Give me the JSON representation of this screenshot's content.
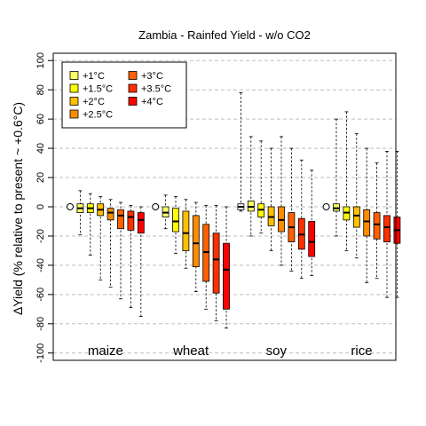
{
  "chart_data": {
    "type": "box",
    "title": "Zambia - Rainfed Yield - w/o CO2",
    "xlabel": "",
    "ylabel": "ΔYield (% relative to present ~ +0.6°C)",
    "ylim": [
      -105,
      105
    ],
    "yticks": [
      -100,
      -80,
      -60,
      -40,
      -20,
      0,
      20,
      40,
      60,
      80,
      100
    ],
    "grid": "horizontal-dashed",
    "legend_position": "top-left",
    "warming_levels": [
      {
        "label": "+1°C",
        "color": "#FFFF66"
      },
      {
        "label": "+1.5°C",
        "color": "#FFFF00"
      },
      {
        "label": "+2°C",
        "color": "#FFC000"
      },
      {
        "label": "+2.5°C",
        "color": "#FF8C00"
      },
      {
        "label": "+3°C",
        "color": "#FF6000"
      },
      {
        "label": "+3.5°C",
        "color": "#FF3000"
      },
      {
        "label": "+4°C",
        "color": "#FF0000"
      }
    ],
    "crops": [
      {
        "name": "maize",
        "boxes": [
          {
            "level": "+0.6°C",
            "min": 0,
            "q1": 0,
            "median": 0,
            "q3": 0,
            "max": 0,
            "baseline": true
          },
          {
            "level": "+1°C",
            "min": -19,
            "q1": -4,
            "median": -1,
            "q3": 2,
            "max": 11
          },
          {
            "level": "+1.5°C",
            "min": -33,
            "q1": -4,
            "median": -1,
            "q3": 2,
            "max": 9
          },
          {
            "level": "+2°C",
            "min": -50,
            "q1": -6,
            "median": -2,
            "q3": 2,
            "max": 7
          },
          {
            "level": "+2.5°C",
            "min": -55,
            "q1": -9,
            "median": -4,
            "q3": -1,
            "max": 5
          },
          {
            "level": "+3°C",
            "min": -63,
            "q1": -15,
            "median": -6,
            "q3": -2,
            "max": 3
          },
          {
            "level": "+3.5°C",
            "min": -69,
            "q1": -16,
            "median": -7,
            "q3": -3,
            "max": 1
          },
          {
            "level": "+4°C",
            "min": -75,
            "q1": -18,
            "median": -9,
            "q3": -4,
            "max": 0
          }
        ]
      },
      {
        "name": "wheat",
        "boxes": [
          {
            "level": "+0.6°C",
            "min": 0,
            "q1": 0,
            "median": 0,
            "q3": 0,
            "max": 0,
            "baseline": true
          },
          {
            "level": "+1°C",
            "min": -15,
            "q1": -7,
            "median": -4,
            "q3": 0,
            "max": 8
          },
          {
            "level": "+1.5°C",
            "min": -32,
            "q1": -17,
            "median": -10,
            "q3": -1,
            "max": 7
          },
          {
            "level": "+2°C",
            "min": -42,
            "q1": -30,
            "median": -18,
            "q3": -3,
            "max": 5
          },
          {
            "level": "+2.5°C",
            "min": -58,
            "q1": -41,
            "median": -25,
            "q3": -6,
            "max": 3
          },
          {
            "level": "+3°C",
            "min": -70,
            "q1": -51,
            "median": -31,
            "q3": -12,
            "max": 1
          },
          {
            "level": "+3.5°C",
            "min": -78,
            "q1": -59,
            "median": -36,
            "q3": -18,
            "max": 1
          },
          {
            "level": "+4°C",
            "min": -83,
            "q1": -70,
            "median": -43,
            "q3": -25,
            "max": 0
          }
        ]
      },
      {
        "name": "soy",
        "boxes": [
          {
            "level": "+0.6°C",
            "min": -3,
            "q1": -2,
            "median": 0,
            "q3": 2,
            "max": 78,
            "baseline": true
          },
          {
            "level": "+1°C",
            "min": -20,
            "q1": -3,
            "median": 0,
            "q3": 4,
            "max": 48
          },
          {
            "level": "+1.5°C",
            "min": -18,
            "q1": -7,
            "median": -2,
            "q3": 2,
            "max": 45
          },
          {
            "level": "+2°C",
            "min": -30,
            "q1": -13,
            "median": -7,
            "q3": 0,
            "max": 40
          },
          {
            "level": "+2.5°C",
            "min": -40,
            "q1": -17,
            "median": -9,
            "q3": 0,
            "max": 48
          },
          {
            "level": "+3°C",
            "min": -44,
            "q1": -24,
            "median": -14,
            "q3": -4,
            "max": 40
          },
          {
            "level": "+3.5°C",
            "min": -49,
            "q1": -29,
            "median": -19,
            "q3": -8,
            "max": 32
          },
          {
            "level": "+4°C",
            "min": -47,
            "q1": -34,
            "median": -24,
            "q3": -10,
            "max": 25
          }
        ]
      },
      {
        "name": "rice",
        "boxes": [
          {
            "level": "+0.6°C",
            "min": 0,
            "q1": 0,
            "median": 0,
            "q3": 0,
            "max": 0,
            "baseline": true
          },
          {
            "level": "+1°C",
            "min": -20,
            "q1": -3,
            "median": -1,
            "q3": 2,
            "max": 60
          },
          {
            "level": "+1.5°C",
            "min": -30,
            "q1": -9,
            "median": -4,
            "q3": 0,
            "max": 65
          },
          {
            "level": "+2°C",
            "min": -35,
            "q1": -14,
            "median": -6,
            "q3": 0,
            "max": 50
          },
          {
            "level": "+2.5°C",
            "min": -52,
            "q1": -20,
            "median": -10,
            "q3": -2,
            "max": 40
          },
          {
            "level": "+3°C",
            "min": -49,
            "q1": -22,
            "median": -12,
            "q3": -4,
            "max": 30
          },
          {
            "level": "+3.5°C",
            "min": -62,
            "q1": -24,
            "median": -14,
            "q3": -6,
            "max": 38
          },
          {
            "level": "+4°C",
            "min": -62,
            "q1": -25,
            "median": -16,
            "q3": -7,
            "max": 38
          }
        ]
      }
    ]
  }
}
